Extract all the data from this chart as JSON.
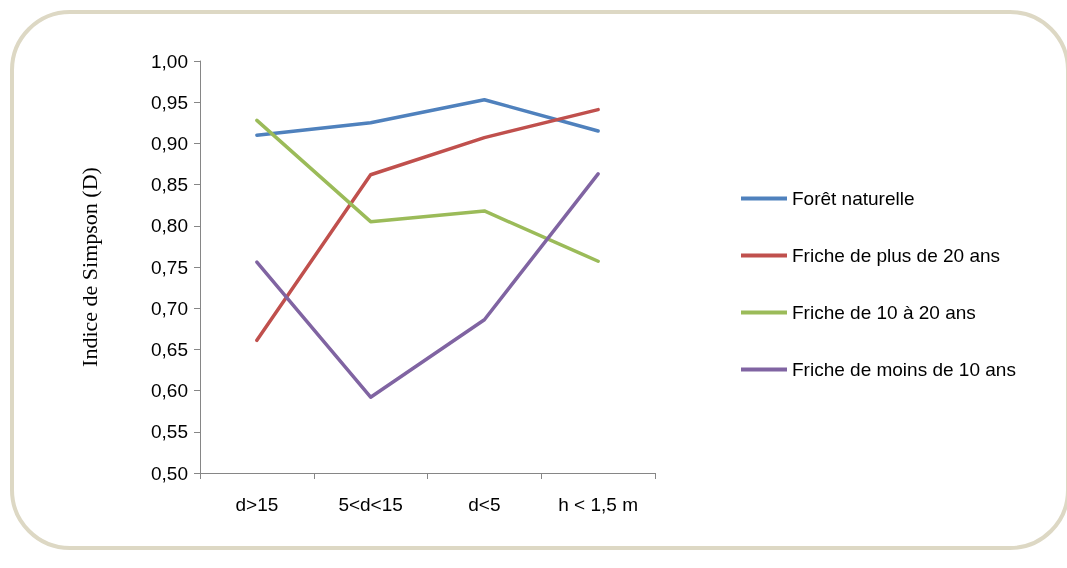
{
  "chart_data": {
    "type": "line",
    "ylabel": "Indice de Simpson (D)",
    "categories": [
      "d>15",
      "5<d<15",
      "d<5",
      "h < 1,5 m"
    ],
    "series": [
      {
        "name": "Forêt naturelle",
        "color": "#4f81bd",
        "values": [
          0.91,
          0.925,
          0.953,
          0.915
        ]
      },
      {
        "name": "Friche de plus de 20 ans",
        "color": "#c0504d",
        "values": [
          0.661,
          0.862,
          0.907,
          0.941
        ]
      },
      {
        "name": "Friche de 10 à 20 ans",
        "color": "#9bbb59",
        "values": [
          0.928,
          0.805,
          0.818,
          0.757
        ]
      },
      {
        "name": "Friche de moins de 10 ans",
        "color": "#8064a2",
        "values": [
          0.756,
          0.592,
          0.686,
          0.863
        ]
      }
    ],
    "ylim": [
      0.5,
      1.0
    ],
    "yticks": [
      {
        "value": 0.5,
        "label": "0,50"
      },
      {
        "value": 0.55,
        "label": "0,55"
      },
      {
        "value": 0.6,
        "label": "0,60"
      },
      {
        "value": 0.65,
        "label": "0,65"
      },
      {
        "value": 0.7,
        "label": "0,70"
      },
      {
        "value": 0.75,
        "label": "0,75"
      },
      {
        "value": 0.8,
        "label": "0,80"
      },
      {
        "value": 0.85,
        "label": "0,85"
      },
      {
        "value": 0.9,
        "label": "0,90"
      },
      {
        "value": 0.95,
        "label": "0,95"
      },
      {
        "value": 1.0,
        "label": "1,00"
      }
    ],
    "grid": false,
    "legend": "right",
    "marker": "none",
    "line_style": "solid"
  }
}
